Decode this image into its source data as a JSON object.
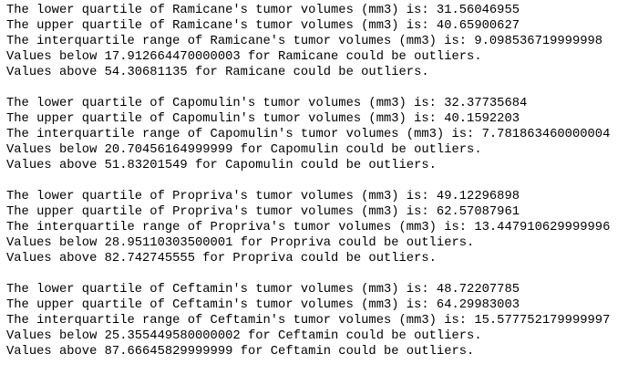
{
  "output": {
    "blocks": [
      {
        "lines": [
          "The lower quartile of Ramicane's tumor volumes (mm3) is: 31.56046955",
          "The upper quartile of Ramicane's tumor volumes (mm3) is: 40.65900627",
          "The interquartile range of Ramicane's tumor volumes (mm3) is: 9.098536719999998",
          "Values below 17.912664470000003 for Ramicane could be outliers.",
          "Values above 54.30681135 for Ramicane could be outliers."
        ]
      },
      {
        "lines": [
          "The lower quartile of Capomulin's tumor volumes (mm3) is: 32.37735684",
          "The upper quartile of Capomulin's tumor volumes (mm3) is: 40.1592203",
          "The interquartile range of Capomulin's tumor volumes (mm3) is: 7.781863460000004",
          "Values below 20.70456164999999 for Capomulin could be outliers.",
          "Values above 51.83201549 for Capomulin could be outliers."
        ]
      },
      {
        "lines": [
          "The lower quartile of Propriva's tumor volumes (mm3) is: 49.12296898",
          "The upper quartile of Propriva's tumor volumes (mm3) is: 62.57087961",
          "The interquartile range of Propriva's tumor volumes (mm3) is: 13.447910629999996",
          "Values below 28.95110303500001 for Propriva could be outliers.",
          "Values above 82.742745555 for Propriva could be outliers."
        ]
      },
      {
        "lines": [
          "The lower quartile of Ceftamin's tumor volumes (mm3) is: 48.72207785",
          "The upper quartile of Ceftamin's tumor volumes (mm3) is: 64.29983003",
          "The interquartile range of Ceftamin's tumor volumes (mm3) is: 15.577752179999997",
          "Values below 25.355449580000002 for Ceftamin could be outliers.",
          "Values above 87.66645829999999 for Ceftamin could be outliers."
        ]
      }
    ]
  }
}
